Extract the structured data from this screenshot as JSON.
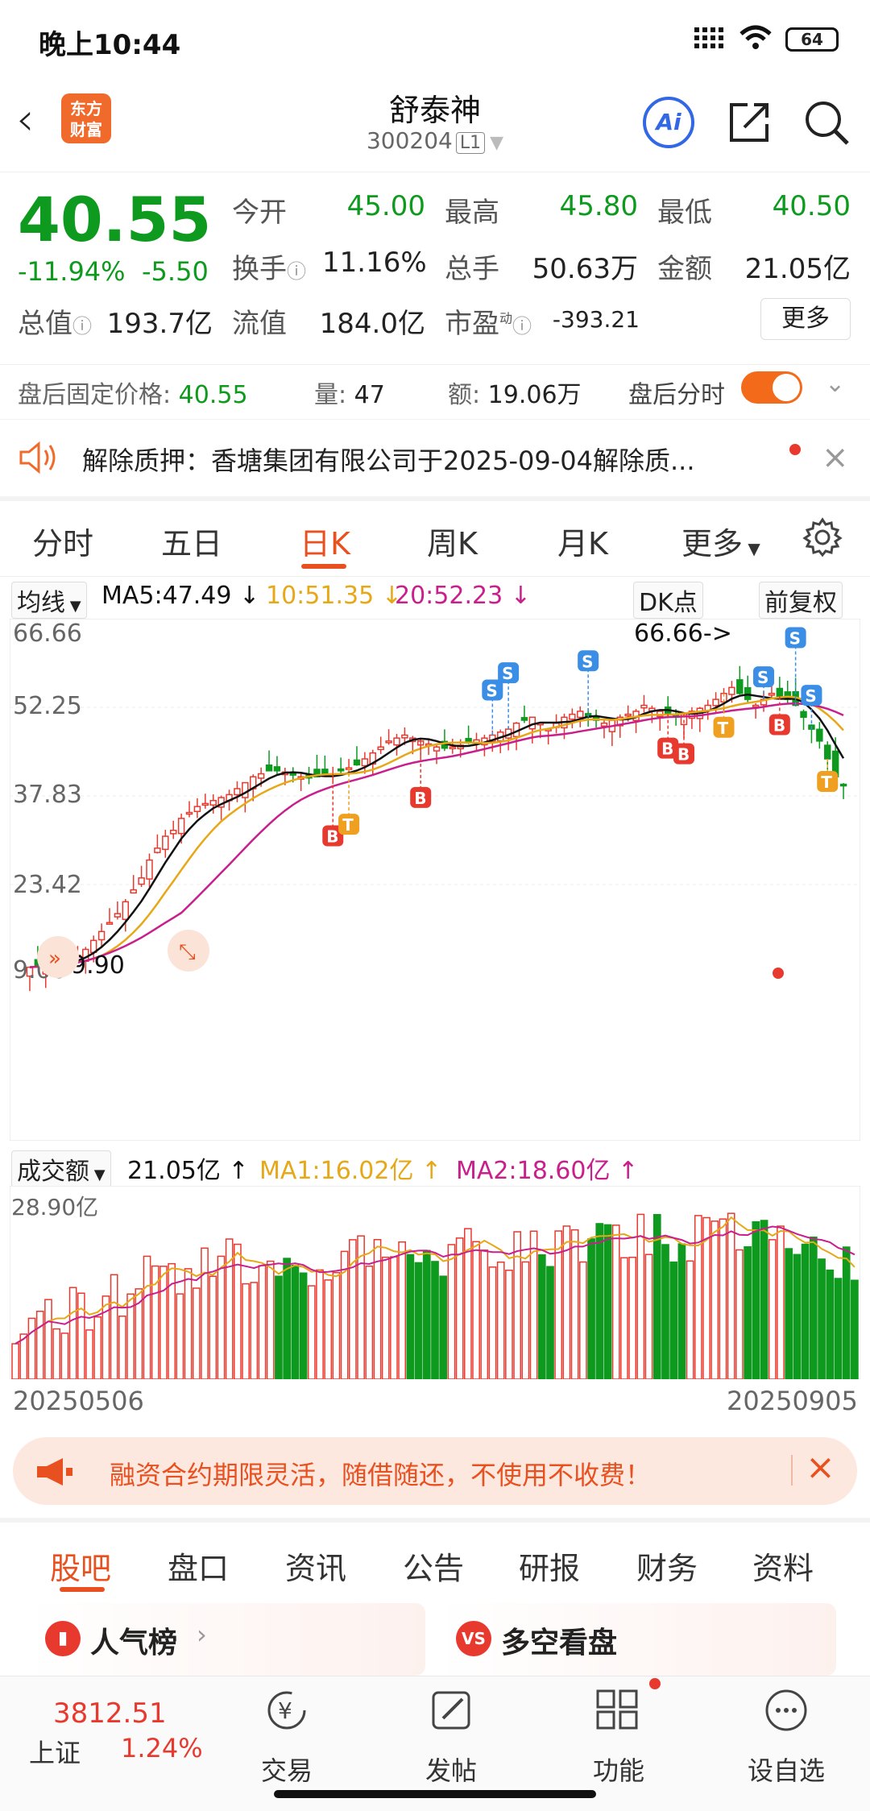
{
  "status": {
    "time": "晚上10:44",
    "battery": "64"
  },
  "header": {
    "logo_line1": "东方",
    "logo_line2": "财富",
    "stock_name": "舒泰神",
    "stock_code": "300204",
    "level": "L1",
    "ai_label": "Ai"
  },
  "quote": {
    "price": "40.55",
    "pct_change": "-11.94%",
    "change": "-5.50",
    "rows": [
      [
        {
          "label": "今开",
          "value": "45.00",
          "color": "green"
        },
        {
          "label": "最高",
          "value": "45.80",
          "color": "green"
        },
        {
          "label": "最低",
          "value": "40.50",
          "color": "green"
        }
      ],
      [
        {
          "label": "换手",
          "value": "11.16%",
          "color": "black"
        },
        {
          "label": "总手",
          "value": "50.63万",
          "color": "black"
        },
        {
          "label": "金额",
          "value": "21.05亿",
          "color": "black"
        }
      ],
      [
        {
          "label": "总值",
          "value": "193.7亿",
          "color": "black"
        },
        {
          "label": "流值",
          "value": "184.0亿",
          "color": "black"
        },
        {
          "label": "市盈",
          "value": "-393.21",
          "color": "black"
        }
      ]
    ],
    "pe_tag": "动",
    "more_button": "更多"
  },
  "after_hours": {
    "fixed_price_label": "盘后固定价格:",
    "fixed_price": "40.55",
    "volume_label": "量:",
    "volume": "47",
    "amount_label": "额:",
    "amount": "19.06万",
    "toggle_label": "盘后分时"
  },
  "notice": {
    "text": "解除质押：香塘集团有限公司于2025-09-04解除质..."
  },
  "chart_tabs": [
    "分时",
    "五日",
    "日K",
    "周K",
    "月K",
    "更多"
  ],
  "active_chart_tab": "日K",
  "ma_bar": {
    "selector": "均线",
    "ma5": "MA5:47.49",
    "ma10": "10:51.35",
    "ma20": "20:52.23",
    "dk_button": "DK点",
    "adjust_button": "前复权"
  },
  "colors": {
    "up": "#e8392f",
    "down": "#0e9a1e",
    "ma5": "#111111",
    "ma10": "#e6a817",
    "ma20": "#c81f8c",
    "accent": "#e8501f"
  },
  "price_chart": {
    "y_labels": [
      "66.66",
      "52.25",
      "37.83",
      "23.42",
      "9.00"
    ],
    "high_label": "66.66->",
    "low_label": "9.90",
    "buy_marker": "B",
    "sell_marker": "S",
    "t_marker": "T"
  },
  "volume_bar": {
    "selector": "成交额",
    "value": "21.05亿",
    "ma1": "MA1:16.02亿",
    "ma2": "MA2:18.60亿",
    "y_label": "28.90亿"
  },
  "date_range": {
    "start": "20250506",
    "end": "20250905"
  },
  "ad_banner": {
    "text": "融资合约期限灵活，随借随还，不使用不收费！"
  },
  "sub_tabs": [
    "股吧",
    "盘口",
    "资讯",
    "公告",
    "研报",
    "财务",
    "资料"
  ],
  "active_sub_tab": "股吧",
  "cards": [
    {
      "title": "人气榜"
    },
    {
      "title": "多空看盘"
    }
  ],
  "bottom_nav": {
    "index_value": "3812.51",
    "index_name": "上证",
    "index_pct": "1.24%",
    "items": [
      "交易",
      "发帖",
      "功能",
      "设自选"
    ]
  }
}
